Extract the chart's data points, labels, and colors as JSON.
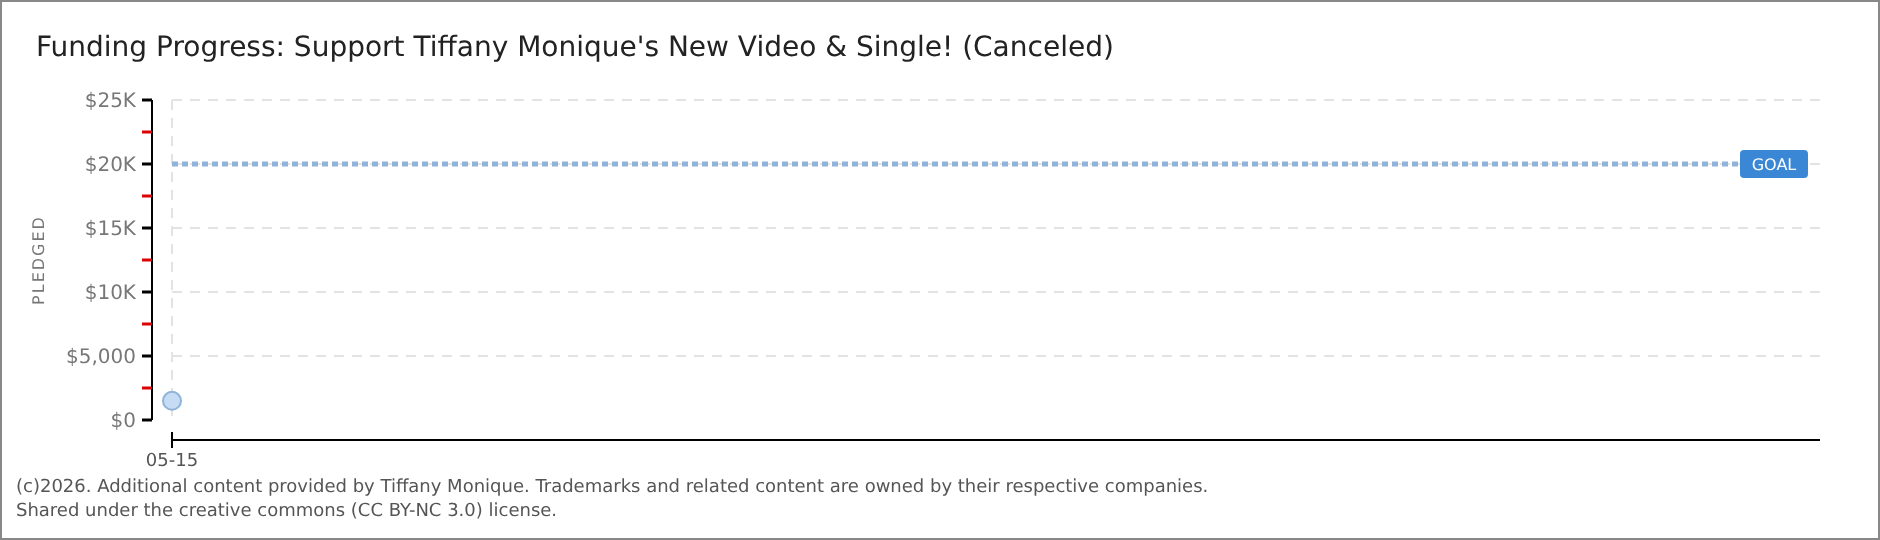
{
  "chart_data": {
    "type": "scatter",
    "title": "Funding Progress: Support Tiffany Monique's New Video & Single! (Canceled)",
    "ylabel": "PLEDGED",
    "categories": [
      "05-15"
    ],
    "series": [
      {
        "color": "#c6dcf5",
        "values": [
          1500
        ]
      }
    ],
    "ylim": [
      0,
      25000
    ],
    "yticks": [
      {
        "value": 0,
        "label": "$0"
      },
      {
        "value": 2500,
        "label": null
      },
      {
        "value": 5000,
        "label": "$5,000"
      },
      {
        "value": 7500,
        "label": null
      },
      {
        "value": 10000,
        "label": "$10K"
      },
      {
        "value": 12500,
        "label": null
      },
      {
        "value": 15000,
        "label": "$15K"
      },
      {
        "value": 17500,
        "label": null
      },
      {
        "value": 20000,
        "label": "$20K"
      },
      {
        "value": 22500,
        "label": null
      },
      {
        "value": 25000,
        "label": "$25K"
      }
    ],
    "grid": true,
    "marker": "circle",
    "ref_lines": [
      {
        "axis": "y",
        "value": 20000,
        "label": "GOAL",
        "color": "#8fb3d9",
        "line_style": "dotted"
      }
    ],
    "annotations": [
      "(c)2026. Additional content provided by Tiffany Monique. Trademarks and related content are owned by their respective companies.",
      "Shared under the creative commons (CC BY-NC 3.0) license."
    ]
  }
}
